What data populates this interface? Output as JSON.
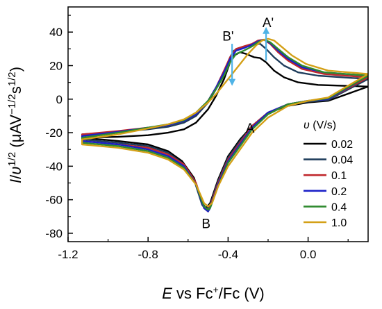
{
  "chart_data": {
    "type": "line",
    "xlabel_var": "E",
    "xlabel_rest": " vs Fc",
    "xlabel_sup": "+",
    "xlabel_tail": "/Fc (V)",
    "ylabel": "I/υ1/2 (μAV−1/2s1/2)",
    "xlim": [
      -1.2,
      0.3
    ],
    "ylim": [
      -85,
      55
    ],
    "xticks": [
      -1.2,
      -0.8,
      -0.4,
      0.0
    ],
    "xtick_labels": [
      "-1.2",
      "-0.8",
      "-0.4",
      "0.0"
    ],
    "yticks": [
      -80,
      -60,
      -40,
      -20,
      0,
      20,
      40
    ],
    "ytick_labels": [
      "-80",
      "-60",
      "-40",
      "-20",
      "0",
      "20",
      "40"
    ],
    "legend_title": "υ (V/s)",
    "legend_position": "right",
    "annotations": [
      {
        "text": "A'",
        "x": -0.2,
        "y": 43
      },
      {
        "text": "B'",
        "x": -0.4,
        "y": 35
      },
      {
        "text": "A",
        "x": -0.29,
        "y": -20
      },
      {
        "text": "B",
        "x": -0.51,
        "y": -77
      }
    ],
    "arrows": [
      {
        "name": "arrow-a-prime",
        "from": [
          -0.21,
          23
        ],
        "to": [
          -0.21,
          41
        ],
        "color": "#4fb3e6"
      },
      {
        "name": "arrow-b-prime",
        "from": [
          -0.38,
          33
        ],
        "to": [
          -0.38,
          10
        ],
        "color": "#4fb3e6"
      }
    ],
    "series": [
      {
        "name": "0.02",
        "color": "#000000",
        "forward": [
          [
            -1.13,
            -23
          ],
          [
            -0.95,
            -22.5
          ],
          [
            -0.8,
            -21.5
          ],
          [
            -0.7,
            -20
          ],
          [
            -0.62,
            -18
          ],
          [
            -0.56,
            -14
          ],
          [
            -0.5,
            -6
          ],
          [
            -0.46,
            2
          ],
          [
            -0.42,
            12
          ],
          [
            -0.39,
            22
          ],
          [
            -0.37,
            26
          ],
          [
            -0.34,
            28
          ],
          [
            -0.31,
            27
          ],
          [
            -0.27,
            25
          ],
          [
            -0.24,
            24.5
          ],
          [
            -0.21,
            22
          ],
          [
            -0.17,
            17
          ],
          [
            -0.12,
            13
          ],
          [
            -0.05,
            10
          ],
          [
            0.05,
            8.5
          ],
          [
            0.3,
            7.5
          ]
        ],
        "reverse": [
          [
            0.3,
            1
          ],
          [
            0.1,
            -1
          ],
          [
            0.0,
            -2
          ],
          [
            -0.1,
            -4
          ],
          [
            -0.2,
            -8
          ],
          [
            -0.28,
            -16
          ],
          [
            -0.34,
            -24
          ],
          [
            -0.4,
            -34
          ],
          [
            -0.45,
            -48
          ],
          [
            -0.49,
            -62
          ],
          [
            -0.51,
            -65
          ],
          [
            -0.53,
            -62
          ],
          [
            -0.57,
            -47
          ],
          [
            -0.63,
            -37
          ],
          [
            -0.7,
            -31
          ],
          [
            -0.8,
            -27
          ],
          [
            -0.95,
            -25
          ],
          [
            -1.13,
            -23
          ]
        ]
      },
      {
        "name": "0.04",
        "color": "#1f3d5c",
        "forward": [
          [
            -1.13,
            -21
          ],
          [
            -0.95,
            -19.5
          ],
          [
            -0.8,
            -18
          ],
          [
            -0.7,
            -16.5
          ],
          [
            -0.62,
            -14
          ],
          [
            -0.56,
            -10
          ],
          [
            -0.5,
            -2
          ],
          [
            -0.46,
            6
          ],
          [
            -0.42,
            16
          ],
          [
            -0.39,
            25
          ],
          [
            -0.37,
            29
          ],
          [
            -0.33,
            31
          ],
          [
            -0.3,
            31.5
          ],
          [
            -0.27,
            32.5
          ],
          [
            -0.24,
            33
          ],
          [
            -0.21,
            30
          ],
          [
            -0.17,
            25
          ],
          [
            -0.12,
            20
          ],
          [
            -0.05,
            16
          ],
          [
            0.05,
            14
          ],
          [
            0.3,
            12
          ]
        ],
        "reverse": [
          [
            0.3,
            1.5
          ],
          [
            0.1,
            -0.5
          ],
          [
            0.0,
            -1.5
          ],
          [
            -0.1,
            -3.5
          ],
          [
            -0.2,
            -8
          ],
          [
            -0.28,
            -16
          ],
          [
            -0.34,
            -25
          ],
          [
            -0.4,
            -35
          ],
          [
            -0.45,
            -49
          ],
          [
            -0.49,
            -63
          ],
          [
            -0.51,
            -66
          ],
          [
            -0.53,
            -63
          ],
          [
            -0.57,
            -48
          ],
          [
            -0.63,
            -38
          ],
          [
            -0.7,
            -32
          ],
          [
            -0.8,
            -28
          ],
          [
            -0.95,
            -26
          ],
          [
            -1.13,
            -24
          ]
        ]
      },
      {
        "name": "0.1",
        "color": "#c0282d",
        "forward": [
          [
            -1.13,
            -21
          ],
          [
            -0.95,
            -19
          ],
          [
            -0.8,
            -17
          ],
          [
            -0.7,
            -15.5
          ],
          [
            -0.62,
            -13
          ],
          [
            -0.56,
            -9
          ],
          [
            -0.5,
            -1
          ],
          [
            -0.46,
            7
          ],
          [
            -0.42,
            17
          ],
          [
            -0.39,
            25
          ],
          [
            -0.36,
            30
          ],
          [
            -0.32,
            31.5
          ],
          [
            -0.28,
            33
          ],
          [
            -0.25,
            35
          ],
          [
            -0.22,
            35.5
          ],
          [
            -0.19,
            33
          ],
          [
            -0.15,
            28
          ],
          [
            -0.1,
            23
          ],
          [
            -0.03,
            18
          ],
          [
            0.08,
            15
          ],
          [
            0.3,
            13
          ]
        ],
        "reverse": [
          [
            0.3,
            2
          ],
          [
            0.1,
            0
          ],
          [
            0.0,
            -1
          ],
          [
            -0.1,
            -3
          ],
          [
            -0.2,
            -8
          ],
          [
            -0.28,
            -16
          ],
          [
            -0.34,
            -26
          ],
          [
            -0.4,
            -36
          ],
          [
            -0.45,
            -50
          ],
          [
            -0.49,
            -64
          ],
          [
            -0.5,
            -67
          ],
          [
            -0.52,
            -65
          ],
          [
            -0.56,
            -50
          ],
          [
            -0.62,
            -39
          ],
          [
            -0.7,
            -33
          ],
          [
            -0.8,
            -29
          ],
          [
            -0.95,
            -27
          ],
          [
            -1.13,
            -25
          ]
        ]
      },
      {
        "name": "0.2",
        "color": "#1a20c8",
        "forward": [
          [
            -1.13,
            -22
          ],
          [
            -0.95,
            -19.5
          ],
          [
            -0.8,
            -17
          ],
          [
            -0.7,
            -15.5
          ],
          [
            -0.62,
            -13
          ],
          [
            -0.56,
            -9
          ],
          [
            -0.5,
            -1
          ],
          [
            -0.46,
            7
          ],
          [
            -0.42,
            16
          ],
          [
            -0.39,
            24
          ],
          [
            -0.36,
            29
          ],
          [
            -0.32,
            30.5
          ],
          [
            -0.28,
            32.5
          ],
          [
            -0.25,
            34.5
          ],
          [
            -0.22,
            35.5
          ],
          [
            -0.19,
            33.5
          ],
          [
            -0.15,
            29
          ],
          [
            -0.1,
            24
          ],
          [
            -0.03,
            19
          ],
          [
            0.08,
            16
          ],
          [
            0.3,
            14
          ]
        ],
        "reverse": [
          [
            0.3,
            2
          ],
          [
            0.1,
            0
          ],
          [
            0.0,
            -1
          ],
          [
            -0.1,
            -3
          ],
          [
            -0.2,
            -8
          ],
          [
            -0.28,
            -17
          ],
          [
            -0.34,
            -27
          ],
          [
            -0.4,
            -37
          ],
          [
            -0.45,
            -51
          ],
          [
            -0.49,
            -65
          ],
          [
            -0.5,
            -67
          ],
          [
            -0.52,
            -65
          ],
          [
            -0.56,
            -51
          ],
          [
            -0.62,
            -40
          ],
          [
            -0.7,
            -34
          ],
          [
            -0.8,
            -30
          ],
          [
            -0.95,
            -27
          ],
          [
            -1.13,
            -25
          ]
        ]
      },
      {
        "name": "0.4",
        "color": "#2f8a2f",
        "forward": [
          [
            -1.13,
            -23
          ],
          [
            -0.95,
            -20
          ],
          [
            -0.8,
            -17
          ],
          [
            -0.7,
            -15
          ],
          [
            -0.62,
            -12.5
          ],
          [
            -0.56,
            -8
          ],
          [
            -0.5,
            -1
          ],
          [
            -0.46,
            6
          ],
          [
            -0.42,
            14
          ],
          [
            -0.39,
            22
          ],
          [
            -0.36,
            27
          ],
          [
            -0.32,
            29
          ],
          [
            -0.28,
            31.5
          ],
          [
            -0.25,
            34
          ],
          [
            -0.22,
            35.5
          ],
          [
            -0.19,
            34
          ],
          [
            -0.15,
            30
          ],
          [
            -0.1,
            25
          ],
          [
            -0.03,
            20
          ],
          [
            0.08,
            16
          ],
          [
            0.3,
            14
          ]
        ],
        "reverse": [
          [
            0.3,
            2.5
          ],
          [
            0.1,
            0.5
          ],
          [
            0.0,
            -1
          ],
          [
            -0.1,
            -3
          ],
          [
            -0.2,
            -9
          ],
          [
            -0.28,
            -18
          ],
          [
            -0.34,
            -28
          ],
          [
            -0.4,
            -38
          ],
          [
            -0.45,
            -52
          ],
          [
            -0.49,
            -65
          ],
          [
            -0.5,
            -66
          ],
          [
            -0.52,
            -64
          ],
          [
            -0.56,
            -51
          ],
          [
            -0.62,
            -41
          ],
          [
            -0.7,
            -35
          ],
          [
            -0.8,
            -31
          ],
          [
            -0.95,
            -28
          ],
          [
            -1.13,
            -26
          ]
        ]
      },
      {
        "name": "1.0",
        "color": "#d4a017",
        "forward": [
          [
            -1.13,
            -24
          ],
          [
            -0.95,
            -21
          ],
          [
            -0.8,
            -17.5
          ],
          [
            -0.7,
            -15
          ],
          [
            -0.62,
            -12
          ],
          [
            -0.56,
            -8
          ],
          [
            -0.5,
            -2
          ],
          [
            -0.46,
            3
          ],
          [
            -0.42,
            9
          ],
          [
            -0.38,
            15
          ],
          [
            -0.34,
            21
          ],
          [
            -0.3,
            27
          ],
          [
            -0.26,
            32
          ],
          [
            -0.23,
            35
          ],
          [
            -0.2,
            36
          ],
          [
            -0.17,
            35
          ],
          [
            -0.13,
            31
          ],
          [
            -0.08,
            26
          ],
          [
            -0.01,
            21
          ],
          [
            0.1,
            17
          ],
          [
            0.3,
            15
          ]
        ],
        "reverse": [
          [
            0.3,
            3
          ],
          [
            0.1,
            1
          ],
          [
            0.0,
            -1
          ],
          [
            -0.1,
            -4
          ],
          [
            -0.2,
            -11
          ],
          [
            -0.28,
            -20
          ],
          [
            -0.34,
            -30
          ],
          [
            -0.4,
            -40
          ],
          [
            -0.45,
            -52
          ],
          [
            -0.48,
            -62
          ],
          [
            -0.5,
            -64
          ],
          [
            -0.52,
            -62
          ],
          [
            -0.56,
            -51
          ],
          [
            -0.62,
            -42
          ],
          [
            -0.7,
            -36
          ],
          [
            -0.8,
            -32
          ],
          [
            -0.95,
            -29
          ],
          [
            -1.13,
            -27
          ]
        ]
      }
    ]
  }
}
